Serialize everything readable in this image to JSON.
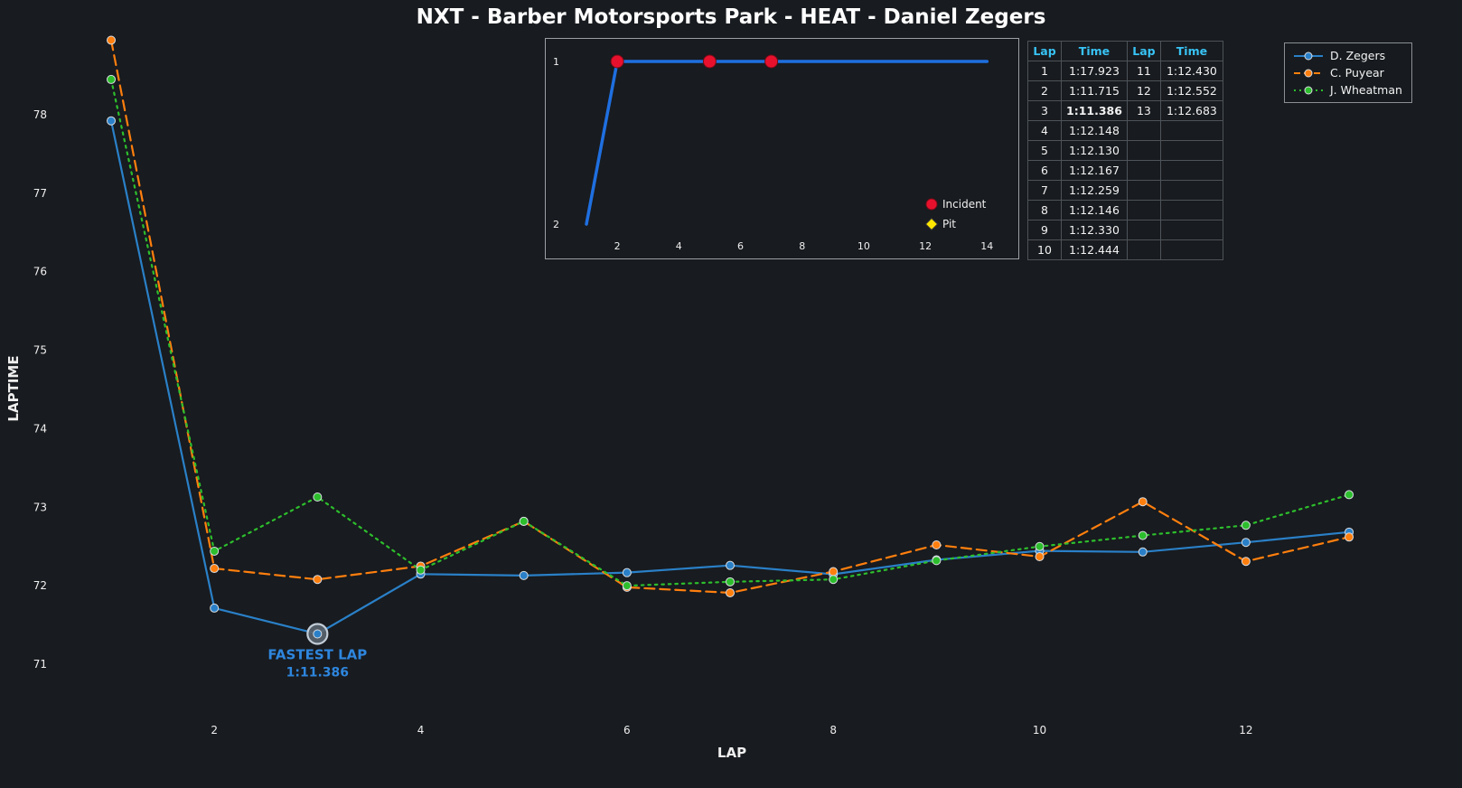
{
  "title": "NXT - Barber Motorsports Park - HEAT - Daniel Zegers",
  "colors": {
    "background": "#181b1f",
    "text": "#f2f2f2",
    "blue": "#2a80c8",
    "orange": "#ff7f0e",
    "green": "#2dbe2d",
    "inset_blue": "#1f6fe0",
    "red": "#e8112d",
    "yellow": "#ffe600",
    "table_header": "#38c3f5",
    "annotation_blue": "#2e86de"
  },
  "chart_data": [
    {
      "name": "laptime-chart",
      "type": "line",
      "title": "NXT - Barber Motorsports Park - HEAT - Daniel Zegers",
      "xlabel": "LAP",
      "ylabel": "LAPTIME",
      "xticks": [
        2,
        4,
        6,
        8,
        10,
        12
      ],
      "yticks": [
        71,
        72,
        73,
        74,
        75,
        76,
        77,
        78
      ],
      "xlim": [
        0.4,
        13.6
      ],
      "ylim": [
        70.4,
        79.1
      ],
      "grid": false,
      "legend_position": "top-right",
      "x": [
        1,
        2,
        3,
        4,
        5,
        6,
        7,
        8,
        9,
        10,
        11,
        12,
        13
      ],
      "series": [
        {
          "name": "D. Zegers",
          "color": "#2a80c8",
          "style": "solid",
          "values": [
            77.923,
            71.715,
            71.386,
            72.148,
            72.13,
            72.167,
            72.259,
            72.146,
            72.33,
            72.444,
            72.43,
            72.552,
            72.683
          ]
        },
        {
          "name": "C. Puyear",
          "color": "#ff7f0e",
          "style": "dashed",
          "values": [
            78.95,
            72.22,
            72.08,
            72.25,
            72.82,
            71.98,
            71.91,
            72.18,
            72.52,
            72.37,
            73.07,
            72.31,
            72.62
          ]
        },
        {
          "name": "J. Wheatman",
          "color": "#2dbe2d",
          "style": "dotted",
          "values": [
            78.45,
            72.44,
            73.13,
            72.2,
            72.82,
            72.0,
            72.05,
            72.08,
            72.32,
            72.5,
            72.64,
            72.77,
            73.16
          ]
        }
      ],
      "annotation": {
        "label": "FASTEST LAP",
        "value": "1:11.386",
        "lap": 3,
        "laptime": 71.386
      }
    },
    {
      "name": "position-chart",
      "type": "line",
      "xticks": [
        2,
        4,
        6,
        8,
        10,
        12,
        14
      ],
      "yticks": [
        1,
        2
      ],
      "xlim": [
        1,
        14
      ],
      "ylim": [
        2,
        1
      ],
      "x": [
        1,
        2,
        3,
        4,
        5,
        6,
        7,
        8,
        9,
        10,
        11,
        12,
        13,
        14
      ],
      "series": [
        {
          "name": "Position",
          "color": "#1f6fe0",
          "style": "solid",
          "values": [
            2,
            1,
            1,
            1,
            1,
            1,
            1,
            1,
            1,
            1,
            1,
            1,
            1,
            1
          ]
        }
      ],
      "incidents": {
        "label": "Incident",
        "color": "#e8112d",
        "laps": [
          2,
          5,
          7
        ],
        "position": 1
      },
      "pit": {
        "label": "Pit",
        "color": "#ffe600",
        "laps": []
      }
    }
  ],
  "lap_table": {
    "headers": [
      "Lap",
      "Time",
      "Lap",
      "Time"
    ],
    "rows": [
      [
        "1",
        "1:17.923",
        "11",
        "1:12.430"
      ],
      [
        "2",
        "1:11.715",
        "12",
        "1:12.552"
      ],
      [
        "3",
        "1:11.386",
        "13",
        "1:12.683"
      ],
      [
        "4",
        "1:12.148",
        "",
        ""
      ],
      [
        "5",
        "1:12.130",
        "",
        ""
      ],
      [
        "6",
        "1:12.167",
        "",
        ""
      ],
      [
        "7",
        "1:12.259",
        "",
        ""
      ],
      [
        "8",
        "1:12.146",
        "",
        ""
      ],
      [
        "9",
        "1:12.330",
        "",
        ""
      ],
      [
        "10",
        "1:12.444",
        "",
        ""
      ]
    ],
    "fastest_cell": [
      2,
      1
    ]
  },
  "legend": {
    "items": [
      {
        "label": "D. Zegers",
        "color": "#2a80c8",
        "style": "solid"
      },
      {
        "label": "C. Puyear",
        "color": "#ff7f0e",
        "style": "dashed"
      },
      {
        "label": "J. Wheatman",
        "color": "#2dbe2d",
        "style": "dotted"
      }
    ]
  },
  "inset_legend": {
    "incident_label": "Incident",
    "pit_label": "Pit"
  }
}
